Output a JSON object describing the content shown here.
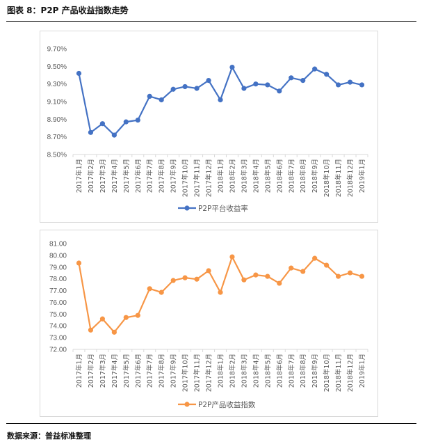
{
  "header": {
    "title": "图表 8：P2P 产品收益指数走势"
  },
  "footer": {
    "source": "数据来源：普益标准整理"
  },
  "chart_data": [
    {
      "type": "line",
      "categories": [
        "2017年1月",
        "2017年2月",
        "2017年3月",
        "2017年4月",
        "2017年5月",
        "2017年6月",
        "2017年7月",
        "2017年8月",
        "2017年9月",
        "2017年10月",
        "2017年11月",
        "2017年12月",
        "2018年1月",
        "2018年2月",
        "2018年3月",
        "2018年4月",
        "2018年5月",
        "2018年6月",
        "2018年7月",
        "2018年8月",
        "2018年9月",
        "2018年10月",
        "2018年11月",
        "2018年12月",
        "2019年1月"
      ],
      "series": [
        {
          "name": "P2P平台收益率",
          "color": "#4472c4",
          "values": [
            9.42,
            8.75,
            8.85,
            8.72,
            8.87,
            8.89,
            9.16,
            9.12,
            9.24,
            9.27,
            9.25,
            9.34,
            9.12,
            9.49,
            9.25,
            9.3,
            9.29,
            9.22,
            9.37,
            9.34,
            9.47,
            9.41,
            9.29,
            9.32,
            9.29
          ]
        }
      ],
      "ylim": [
        8.5,
        9.7
      ],
      "yticks": [
        "9.70%",
        "9.50%",
        "9.30%",
        "9.10%",
        "8.90%",
        "8.70%",
        "8.50%"
      ],
      "ytick_values": [
        9.7,
        9.5,
        9.3,
        9.1,
        8.9,
        8.7,
        8.5
      ],
      "grid": false,
      "legend": "bottom"
    },
    {
      "type": "line",
      "categories": [
        "2017年1月",
        "2017年2月",
        "2017年3月",
        "2017年4月",
        "2017年5月",
        "2017年6月",
        "2017年7月",
        "2017年8月",
        "2017年9月",
        "2017年10月",
        "2017年11月",
        "2017年12月",
        "2018年1月",
        "2018年2月",
        "2018年3月",
        "2018年4月",
        "2018年5月",
        "2018年6月",
        "2018年7月",
        "2018年8月",
        "2018年9月",
        "2018年10月",
        "2018年11月",
        "2018年12月",
        "2019年1月"
      ],
      "series": [
        {
          "name": "P2P产品收益指数",
          "color": "#f79646",
          "values": [
            79.34,
            73.64,
            74.59,
            73.46,
            74.71,
            74.89,
            77.16,
            76.85,
            77.86,
            78.09,
            77.97,
            78.69,
            76.85,
            79.87,
            77.91,
            78.33,
            78.21,
            77.62,
            78.92,
            78.63,
            79.75,
            79.16,
            78.21,
            78.51,
            78.21
          ]
        }
      ],
      "ylim": [
        72,
        81
      ],
      "yticks": [
        "81.00",
        "80.00",
        "79.00",
        "78.00",
        "77.00",
        "76.00",
        "75.00",
        "74.00",
        "73.00",
        "72.00"
      ],
      "ytick_values": [
        81,
        80,
        79,
        78,
        77,
        76,
        75,
        74,
        73,
        72
      ],
      "grid": false,
      "legend": "bottom"
    }
  ]
}
